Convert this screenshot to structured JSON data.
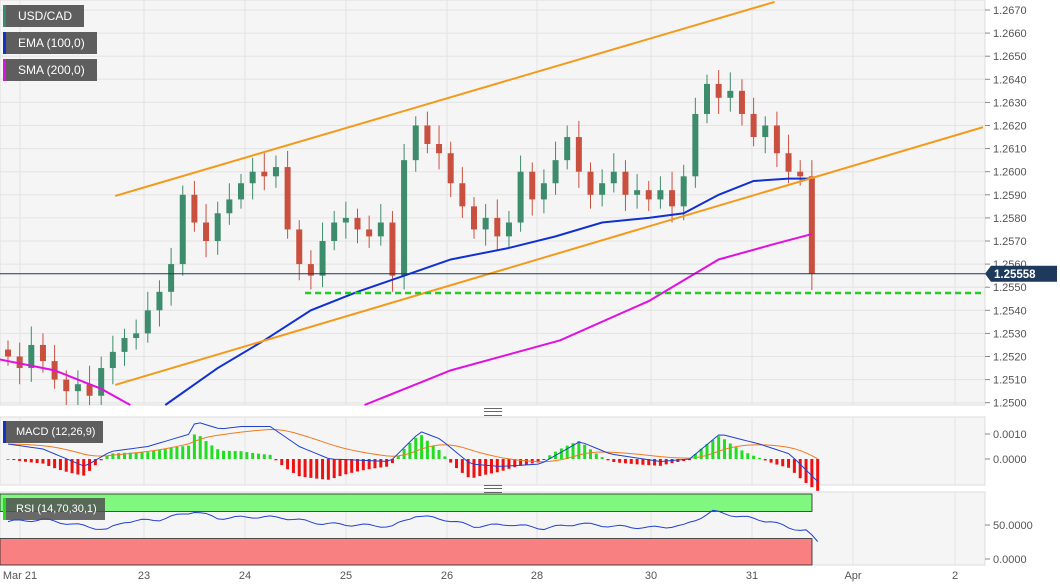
{
  "legend": {
    "symbol": "USD/CAD",
    "ema": "EMA (100,0)",
    "sma": "SMA (200,0)",
    "macd": "MACD (12,26,9)",
    "rsi": "RSI (14,70,30,1)"
  },
  "colors": {
    "up": "#3d8c6c",
    "down": "#c9503f",
    "ema": "#1030d0",
    "sma": "#e010e0",
    "trendline": "#f39a1c",
    "support": "#22cc22",
    "price_line": "#1d3a5c",
    "macd_line": "#2040d0",
    "signal_line": "#f07a20",
    "hist_pos": "#22dd22",
    "hist_neg": "#ee1111",
    "rsi_line": "#2040d0",
    "overbought": "#80f880",
    "oversold": "#f88080"
  },
  "chart_data": [
    {
      "type": "candlestick",
      "ylim": [
        1.25,
        1.267
      ],
      "y_ticks": [
        "1.2670",
        "1.2660",
        "1.2650",
        "1.2640",
        "1.2630",
        "1.2620",
        "1.2610",
        "1.2600",
        "1.2590",
        "1.2580",
        "1.2570",
        "1.2560",
        "1.2550",
        "1.2540",
        "1.2530",
        "1.2520",
        "1.2510",
        "1.2500"
      ],
      "x_ticks": [
        "Mar 21",
        "23",
        "24",
        "25",
        "26",
        "28",
        "30",
        "31",
        "Apr",
        "2"
      ],
      "grid": true,
      "current_price": "1.25558",
      "close": [
        1.252,
        1.2515,
        1.2525,
        1.2518,
        1.251,
        1.2505,
        1.2508,
        1.2503,
        1.2515,
        1.2522,
        1.2528,
        1.253,
        1.254,
        1.2548,
        1.256,
        1.259,
        1.2578,
        1.257,
        1.2582,
        1.2588,
        1.2595,
        1.26,
        1.2598,
        1.2602,
        1.2575,
        1.256,
        1.2555,
        1.257,
        1.2578,
        1.258,
        1.2575,
        1.2572,
        1.2578,
        1.2555,
        1.2605,
        1.262,
        1.2612,
        1.2608,
        1.2595,
        1.2585,
        1.2575,
        1.258,
        1.2572,
        1.2578,
        1.26,
        1.2588,
        1.2595,
        1.2605,
        1.2615,
        1.26,
        1.259,
        1.2595,
        1.26,
        1.259,
        1.2592,
        1.2588,
        1.2592,
        1.2585,
        1.2598,
        1.2625,
        1.2638,
        1.2632,
        1.2635,
        1.2625,
        1.2615,
        1.262,
        1.2608,
        1.26,
        1.2598,
        1.25558
      ],
      "ema_100": [
        [
          13.5,
          1.2499
        ],
        [
          18,
          1.2515
        ],
        [
          22,
          1.2527
        ],
        [
          26,
          1.254
        ],
        [
          30,
          1.2548
        ],
        [
          34,
          1.2555
        ],
        [
          38,
          1.2562
        ],
        [
          43,
          1.2567
        ],
        [
          47,
          1.2572
        ],
        [
          51,
          1.2578
        ],
        [
          55,
          1.258
        ],
        [
          58,
          1.2582
        ],
        [
          61,
          1.259
        ],
        [
          64,
          1.2596
        ],
        [
          67,
          1.2597
        ],
        [
          69,
          1.2597
        ]
      ],
      "sma_200": [
        [
          -1,
          1.2519
        ],
        [
          4,
          1.2514
        ],
        [
          8,
          1.2506
        ],
        [
          10.5,
          1.2499
        ],
        null,
        [
          30.6,
          1.2499
        ],
        [
          38,
          1.2514
        ],
        [
          47.4,
          1.2527
        ],
        [
          55,
          1.2544
        ],
        [
          61,
          1.2562
        ],
        [
          66,
          1.2569
        ],
        [
          69,
          1.2573
        ]
      ],
      "trendlines": [
        {
          "from": [
            9.2,
            1.25895
          ],
          "to": [
            65.8,
            1.26735
          ]
        },
        {
          "from": [
            9.2,
            1.25077
          ],
          "to": [
            83.7,
            1.26193
          ]
        }
      ],
      "support_level": 1.25475
    },
    {
      "type": "macd",
      "y_ticks": [
        "0.0010",
        "0.0000"
      ],
      "macd": [
        [
          0,
          0.0006
        ],
        [
          3,
          0.0004
        ],
        [
          6.6,
          -0.0003
        ],
        [
          8.8,
          0.0003
        ],
        [
          12,
          0.0005
        ],
        [
          15.6,
          0.001
        ],
        [
          16.1,
          0.0015
        ],
        [
          18.2,
          0.0012
        ],
        [
          20,
          0.0013
        ],
        [
          22.5,
          0.0013
        ],
        [
          25,
          0.0005
        ],
        [
          27.6,
          0.0
        ],
        [
          32.8,
          -0.0001
        ],
        [
          35.4,
          0.0011
        ],
        [
          37.1,
          0.0008
        ],
        [
          39.7,
          -0.0002
        ],
        [
          42.2,
          -0.0003
        ],
        [
          45.7,
          -0.0002
        ],
        [
          49.1,
          0.0007
        ],
        [
          51.7,
          0.0002
        ],
        [
          56,
          -0.0001
        ],
        [
          58.5,
          0.0
        ],
        [
          61.1,
          0.001
        ],
        [
          64.5,
          0.0006
        ],
        [
          67.1,
          0.0002
        ],
        [
          69.5,
          -0.0009
        ]
      ]
    },
    {
      "type": "rsi",
      "y_ticks": [
        "50.0000",
        "0.0000"
      ],
      "overbought": 70,
      "oversold": 30,
      "rsi": [
        [
          0,
          55
        ],
        [
          3,
          58
        ],
        [
          6,
          50
        ],
        [
          8.5,
          43
        ],
        [
          10,
          55
        ],
        [
          13,
          58
        ],
        [
          16,
          70
        ],
        [
          18,
          60
        ],
        [
          21,
          62
        ],
        [
          23.5,
          61
        ],
        [
          27,
          52
        ],
        [
          30,
          50
        ],
        [
          33,
          48
        ],
        [
          35,
          64
        ],
        [
          37.5,
          58
        ],
        [
          40,
          48
        ],
        [
          43,
          51
        ],
        [
          46,
          45
        ],
        [
          49,
          52
        ],
        [
          52,
          48
        ],
        [
          55,
          46
        ],
        [
          58,
          49
        ],
        [
          60.5,
          70
        ],
        [
          63,
          62
        ],
        [
          65.5,
          55
        ],
        [
          67,
          46
        ],
        [
          68.5,
          42
        ],
        [
          69.5,
          25
        ]
      ]
    }
  ]
}
